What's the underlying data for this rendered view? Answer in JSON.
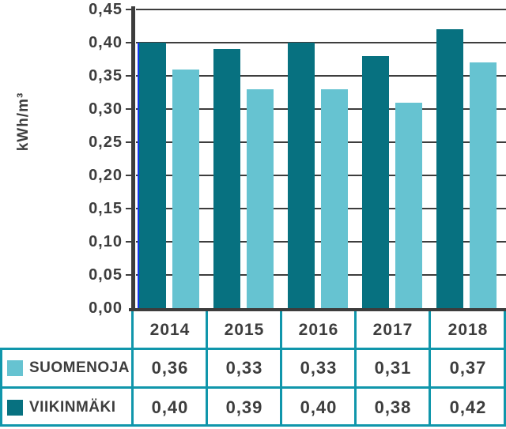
{
  "colors": {
    "suomenoja_light_blue": "#66c3d1",
    "viikinmaki_dark_teal": "#077180",
    "axis_and_text_gray": "#3d3d3d",
    "table_border_teal": "#1096ab",
    "accent_blue_line": "#1334f0",
    "background": "#ffffff"
  },
  "chart_data": {
    "type": "bar",
    "title": "",
    "ylabel": "kWh/m³",
    "xlabel": "",
    "categories": [
      "2014",
      "2015",
      "2016",
      "2017",
      "2018"
    ],
    "series": [
      {
        "name": "VIIKINMÄKI",
        "slug": "viikinmaki",
        "color": "#077180",
        "values": [
          0.4,
          0.39,
          0.4,
          0.38,
          0.42
        ]
      },
      {
        "name": "SUOMENOJA",
        "slug": "suomenoja",
        "color": "#66c3d1",
        "values": [
          0.36,
          0.33,
          0.33,
          0.31,
          0.37
        ]
      }
    ],
    "ylim": [
      0,
      0.45
    ],
    "ytick_step": 0.05,
    "ytick_labels": [
      "0,45",
      "0,40",
      "0,35",
      "0,30",
      "0,25",
      "0,20",
      "0,15",
      "0,10",
      "0,05",
      "0,00"
    ],
    "grid": true,
    "decimal_separator": ",",
    "legend_position": "table rows below chart",
    "bar_order": "dark VIIKINMÄKI bar on left, light SUOMENOJA bar on right of each year group"
  },
  "table": {
    "header_years": [
      "2014",
      "2015",
      "2016",
      "2017",
      "2018"
    ],
    "rows": [
      {
        "label": "SUOMENOJA",
        "swatch_color": "#66c3d1",
        "values": [
          "0,36",
          "0,33",
          "0,33",
          "0,31",
          "0,37"
        ]
      },
      {
        "label": "VIIKINMÄKI",
        "swatch_color": "#077180",
        "values": [
          "0,40",
          "0,39",
          "0,40",
          "0,38",
          "0,42"
        ]
      }
    ]
  }
}
